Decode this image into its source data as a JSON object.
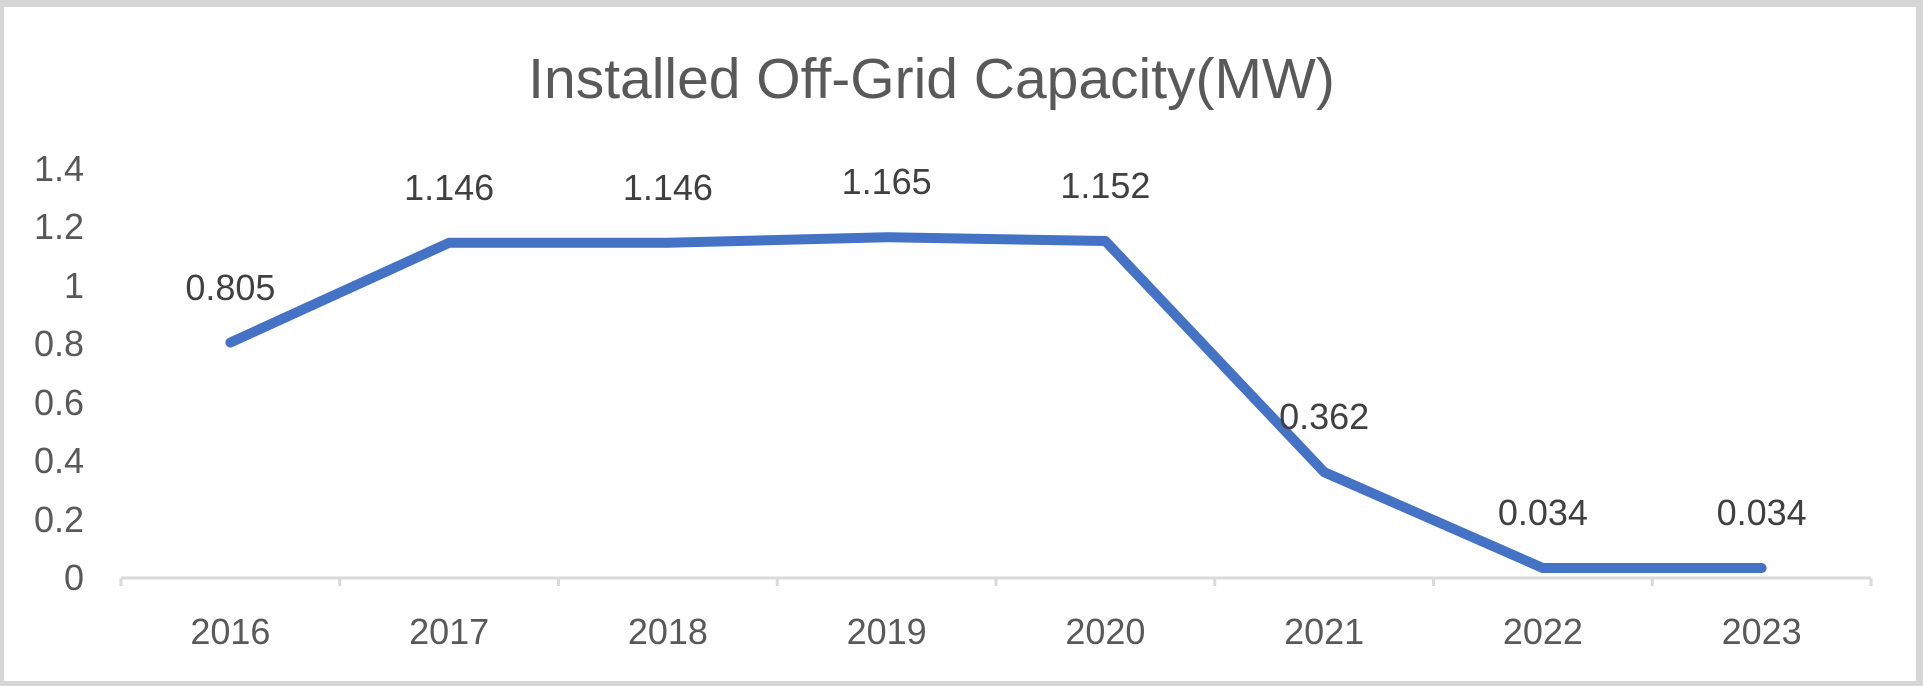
{
  "window": {
    "background_color": "#ffffff",
    "frame_border_color": "#d6d6d6"
  },
  "chart_data": {
    "type": "line",
    "title": "Installed Off-Grid Capacity(MW)",
    "categories": [
      "2016",
      "2017",
      "2018",
      "2019",
      "2020",
      "2021",
      "2022",
      "2023"
    ],
    "series": [
      {
        "name": "Installed Off-Grid Capacity(MW)",
        "values": [
          0.805,
          1.146,
          1.146,
          1.165,
          1.152,
          0.362,
          0.034,
          0.034
        ]
      }
    ],
    "data_labels": [
      "0.805",
      "1.146",
      "1.146",
      "1.165",
      "1.152",
      "0.362",
      "0.034",
      "0.034"
    ],
    "y_tick_labels": [
      "0",
      "0.2",
      "0.4",
      "0.6",
      "0.8",
      "1",
      "1.2",
      "1.4"
    ],
    "ylim": [
      0,
      1.4
    ],
    "xlabel": "",
    "ylabel": "",
    "grid": false,
    "legend_position": "none",
    "line_color": "#4472C4",
    "axis_line_color": "#D9D9D9",
    "title_color": "#595959",
    "tick_label_color": "#595959",
    "data_label_color": "#404040"
  }
}
